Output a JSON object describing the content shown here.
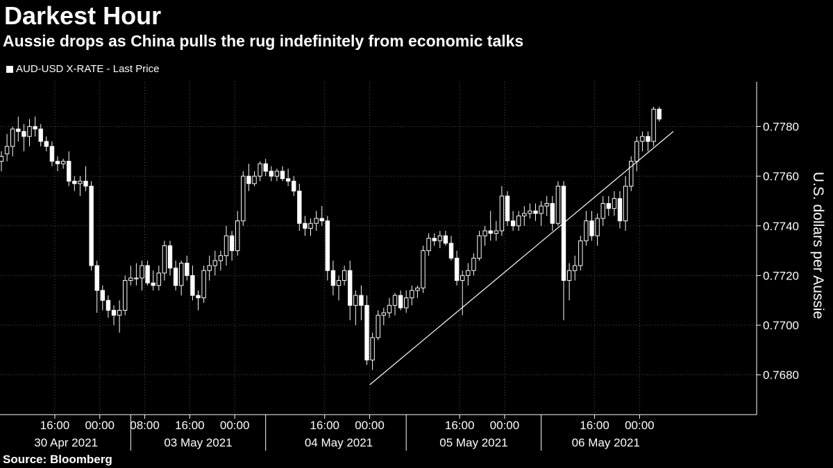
{
  "chart_data": {
    "type": "candlestick",
    "title": "Darkest Hour",
    "subtitle": "Aussie drops as China pulls the rug indefinitely from economic talks",
    "legend": "AUD-USD X-RATE - Last Price",
    "ylabel": "U.S. dollars per Aussie",
    "ylim": [
      0.7664,
      0.7798
    ],
    "yticks": [
      "0.7680",
      "0.7700",
      "0.7720",
      "0.7740",
      "0.7760",
      "0.7780"
    ],
    "xtick_labels": [
      {
        "label": "16:00",
        "pos": 9.5
      },
      {
        "label": "00:00",
        "pos": 17.5
      },
      {
        "label": "08:00",
        "pos": 25.5
      },
      {
        "label": "16:00",
        "pos": 33.5
      },
      {
        "label": "00:00",
        "pos": 41.5
      },
      {
        "label": "16:00",
        "pos": 57.5
      },
      {
        "label": "00:00",
        "pos": 65.5
      },
      {
        "label": "16:00",
        "pos": 81.5
      },
      {
        "label": "00:00",
        "pos": 89.5
      },
      {
        "label": "16:00",
        "pos": 105.5
      },
      {
        "label": "00:00",
        "pos": 113.5
      }
    ],
    "day_labels": [
      {
        "label": "30 Apr 2021",
        "pos": 11.5
      },
      {
        "label": "03 May 2021",
        "pos": 35
      },
      {
        "label": "04 May 2021",
        "pos": 60
      },
      {
        "label": "05 May 2021",
        "pos": 84
      },
      {
        "label": "06 May 2021",
        "pos": 107.5
      }
    ],
    "day_separators": [
      23,
      47,
      72,
      96
    ],
    "trendline": [
      [
        65.5,
        0.7676
      ],
      [
        119.5,
        0.7778
      ]
    ],
    "candles": [
      [
        0.7766,
        0.777,
        0.7762,
        0.7768
      ],
      [
        0.7769,
        0.7777,
        0.7766,
        0.7772
      ],
      [
        0.7772,
        0.778,
        0.7768,
        0.7779
      ],
      [
        0.7779,
        0.7784,
        0.7774,
        0.7778
      ],
      [
        0.7778,
        0.7781,
        0.777,
        0.7776
      ],
      [
        0.7776,
        0.7783,
        0.7772,
        0.778
      ],
      [
        0.778,
        0.7784,
        0.7776,
        0.7779
      ],
      [
        0.7779,
        0.7781,
        0.7772,
        0.7774
      ],
      [
        0.7774,
        0.7776,
        0.777,
        0.7772
      ],
      [
        0.7772,
        0.7774,
        0.7764,
        0.7766
      ],
      [
        0.7766,
        0.7768,
        0.7762,
        0.7765
      ],
      [
        0.7765,
        0.7767,
        0.7763,
        0.7766
      ],
      [
        0.7766,
        0.777,
        0.7756,
        0.7758
      ],
      [
        0.7758,
        0.776,
        0.7754,
        0.7757
      ],
      [
        0.7757,
        0.776,
        0.7752,
        0.7758
      ],
      [
        0.7758,
        0.7764,
        0.7754,
        0.7756
      ],
      [
        0.7756,
        0.7758,
        0.7722,
        0.7724
      ],
      [
        0.7724,
        0.7726,
        0.7705,
        0.7714
      ],
      [
        0.7714,
        0.7716,
        0.7706,
        0.771
      ],
      [
        0.771,
        0.7712,
        0.7703,
        0.7706
      ],
      [
        0.7706,
        0.7708,
        0.77,
        0.7704
      ],
      [
        0.7704,
        0.771,
        0.7697,
        0.7706
      ],
      [
        0.7706,
        0.772,
        0.7704,
        0.7718
      ],
      [
        0.7718,
        0.7724,
        0.7716,
        0.7719
      ],
      [
        0.7719,
        0.7725,
        0.7716,
        0.7719
      ],
      [
        0.7719,
        0.7726,
        0.7714,
        0.7724
      ],
      [
        0.7724,
        0.7726,
        0.7716,
        0.7717
      ],
      [
        0.7717,
        0.7722,
        0.7714,
        0.7716
      ],
      [
        0.7716,
        0.7724,
        0.7714,
        0.7721
      ],
      [
        0.7721,
        0.7734,
        0.7718,
        0.7732
      ],
      [
        0.7732,
        0.7734,
        0.772,
        0.7723
      ],
      [
        0.7723,
        0.7726,
        0.7714,
        0.7716
      ],
      [
        0.7716,
        0.7726,
        0.7712,
        0.7725
      ],
      [
        0.7725,
        0.7728,
        0.7718,
        0.772
      ],
      [
        0.772,
        0.7724,
        0.771,
        0.7712
      ],
      [
        0.7712,
        0.7714,
        0.7706,
        0.7711
      ],
      [
        0.7711,
        0.7724,
        0.7709,
        0.7722
      ],
      [
        0.7722,
        0.7728,
        0.7718,
        0.7724
      ],
      [
        0.7724,
        0.773,
        0.772,
        0.7726
      ],
      [
        0.7726,
        0.773,
        0.7722,
        0.7728
      ],
      [
        0.7728,
        0.774,
        0.7724,
        0.7736
      ],
      [
        0.7736,
        0.7738,
        0.7726,
        0.773
      ],
      [
        0.773,
        0.7746,
        0.7728,
        0.7742
      ],
      [
        0.7742,
        0.7762,
        0.774,
        0.776
      ],
      [
        0.776,
        0.7765,
        0.7754,
        0.7757
      ],
      [
        0.7757,
        0.7762,
        0.7756,
        0.776
      ],
      [
        0.776,
        0.7766,
        0.7758,
        0.7765
      ],
      [
        0.7765,
        0.7767,
        0.776,
        0.7762
      ],
      [
        0.7762,
        0.7764,
        0.7758,
        0.776
      ],
      [
        0.776,
        0.7763,
        0.7758,
        0.7762
      ],
      [
        0.7762,
        0.7764,
        0.7758,
        0.7759
      ],
      [
        0.7759,
        0.7763,
        0.7756,
        0.7758
      ],
      [
        0.7758,
        0.776,
        0.7752,
        0.7754
      ],
      [
        0.7754,
        0.7757,
        0.7738,
        0.7741
      ],
      [
        0.7741,
        0.7744,
        0.7736,
        0.7739
      ],
      [
        0.7739,
        0.7743,
        0.7736,
        0.7741
      ],
      [
        0.7741,
        0.7746,
        0.7738,
        0.7743
      ],
      [
        0.7743,
        0.7748,
        0.774,
        0.7742
      ],
      [
        0.7742,
        0.7744,
        0.7718,
        0.7722
      ],
      [
        0.7722,
        0.7726,
        0.7712,
        0.7716
      ],
      [
        0.7716,
        0.772,
        0.771,
        0.7718
      ],
      [
        0.7718,
        0.7724,
        0.7716,
        0.7722
      ],
      [
        0.7722,
        0.7726,
        0.7702,
        0.7708
      ],
      [
        0.7708,
        0.7714,
        0.77,
        0.7712
      ],
      [
        0.7712,
        0.7716,
        0.7702,
        0.7708
      ],
      [
        0.7708,
        0.7712,
        0.7684,
        0.7686
      ],
      [
        0.7686,
        0.7697,
        0.7682,
        0.7695
      ],
      [
        0.7695,
        0.7706,
        0.7694,
        0.7704
      ],
      [
        0.7704,
        0.7707,
        0.77,
        0.7705
      ],
      [
        0.7705,
        0.7711,
        0.7703,
        0.7708
      ],
      [
        0.7708,
        0.7713,
        0.7704,
        0.7712
      ],
      [
        0.7712,
        0.7714,
        0.7706,
        0.7707
      ],
      [
        0.7707,
        0.7714,
        0.7705,
        0.7711
      ],
      [
        0.7711,
        0.7716,
        0.7708,
        0.7714
      ],
      [
        0.7714,
        0.7716,
        0.7711,
        0.7715
      ],
      [
        0.7715,
        0.7732,
        0.7713,
        0.773
      ],
      [
        0.773,
        0.7737,
        0.7728,
        0.7735
      ],
      [
        0.7735,
        0.7737,
        0.7732,
        0.7734
      ],
      [
        0.7734,
        0.7738,
        0.7731,
        0.7736
      ],
      [
        0.7736,
        0.7738,
        0.7732,
        0.7733
      ],
      [
        0.7733,
        0.7736,
        0.7726,
        0.7727
      ],
      [
        0.7727,
        0.773,
        0.7716,
        0.7718
      ],
      [
        0.7718,
        0.7722,
        0.7704,
        0.772
      ],
      [
        0.772,
        0.7725,
        0.7716,
        0.7722
      ],
      [
        0.7722,
        0.7729,
        0.772,
        0.7727
      ],
      [
        0.7727,
        0.7738,
        0.7726,
        0.7736
      ],
      [
        0.7736,
        0.774,
        0.7732,
        0.7738
      ],
      [
        0.7738,
        0.7746,
        0.7734,
        0.7737
      ],
      [
        0.7737,
        0.7742,
        0.7734,
        0.7738
      ],
      [
        0.7738,
        0.7756,
        0.7736,
        0.7752
      ],
      [
        0.7752,
        0.7754,
        0.774,
        0.7742
      ],
      [
        0.7742,
        0.7746,
        0.7738,
        0.774
      ],
      [
        0.774,
        0.7746,
        0.7738,
        0.7744
      ],
      [
        0.7744,
        0.7748,
        0.774,
        0.7745
      ],
      [
        0.7745,
        0.7749,
        0.7743,
        0.7746
      ],
      [
        0.7746,
        0.7749,
        0.7742,
        0.7745
      ],
      [
        0.7745,
        0.775,
        0.774,
        0.7748
      ],
      [
        0.7748,
        0.7752,
        0.7744,
        0.7749
      ],
      [
        0.7749,
        0.7752,
        0.7738,
        0.7741
      ],
      [
        0.7741,
        0.7758,
        0.774,
        0.7756
      ],
      [
        0.7756,
        0.7758,
        0.7702,
        0.7718
      ],
      [
        0.7718,
        0.7725,
        0.771,
        0.7722
      ],
      [
        0.7722,
        0.7728,
        0.7718,
        0.7724
      ],
      [
        0.7724,
        0.7736,
        0.7722,
        0.7734
      ],
      [
        0.7734,
        0.7746,
        0.7732,
        0.7742
      ],
      [
        0.7742,
        0.7746,
        0.7734,
        0.7736
      ],
      [
        0.7736,
        0.7745,
        0.7732,
        0.7743
      ],
      [
        0.7743,
        0.7752,
        0.774,
        0.7749
      ],
      [
        0.7749,
        0.7752,
        0.7744,
        0.7747
      ],
      [
        0.7747,
        0.7754,
        0.7744,
        0.7751
      ],
      [
        0.7751,
        0.7754,
        0.7739,
        0.7742
      ],
      [
        0.7742,
        0.776,
        0.7738,
        0.7756
      ],
      [
        0.7756,
        0.7768,
        0.7754,
        0.7766
      ],
      [
        0.7766,
        0.7776,
        0.7762,
        0.7774
      ],
      [
        0.7774,
        0.7778,
        0.777,
        0.7776
      ],
      [
        0.7776,
        0.7778,
        0.777,
        0.7774
      ],
      [
        0.7774,
        0.7788,
        0.7772,
        0.7787
      ],
      [
        0.7787,
        0.7788,
        0.7782,
        0.7783
      ]
    ]
  }
}
